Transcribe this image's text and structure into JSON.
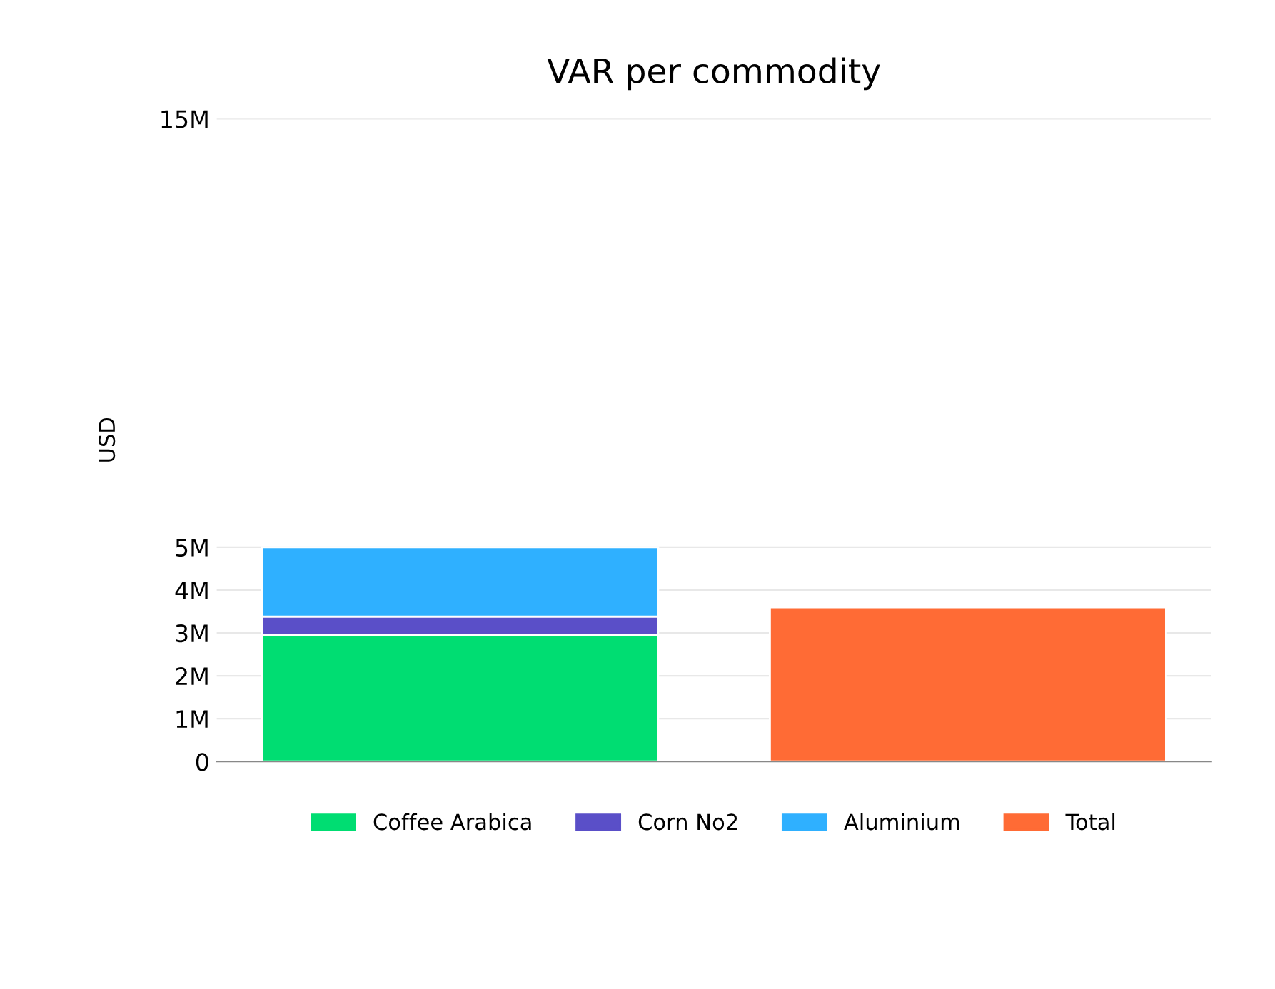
{
  "chart_data": {
    "type": "bar",
    "title": "VAR per commodity",
    "ylabel": "USD",
    "stacked": true,
    "categories": [
      null,
      null
    ],
    "series": [
      {
        "name": "Coffee Arabica",
        "color": "#00dd72",
        "values": [
          2.95,
          null
        ]
      },
      {
        "name": "Corn No2",
        "color": "#5a4fc8",
        "values": [
          0.43,
          null
        ]
      },
      {
        "name": "Aluminium",
        "color": "#2fb0ff",
        "values": [
          1.62,
          null
        ]
      },
      {
        "name": "Total",
        "color": "#ff6b35",
        "values": [
          null,
          3.6
        ]
      }
    ],
    "ylim": [
      0,
      15
    ],
    "yticks": [
      {
        "value": 0,
        "label": "0"
      },
      {
        "value": 1,
        "label": "1M"
      },
      {
        "value": 2,
        "label": "2M"
      },
      {
        "value": 3,
        "label": "3M"
      },
      {
        "value": 4,
        "label": "4M"
      },
      {
        "value": 5,
        "label": "5M"
      },
      {
        "value": 15,
        "label": "15M"
      }
    ],
    "grid": "y",
    "legend": "bottom"
  }
}
